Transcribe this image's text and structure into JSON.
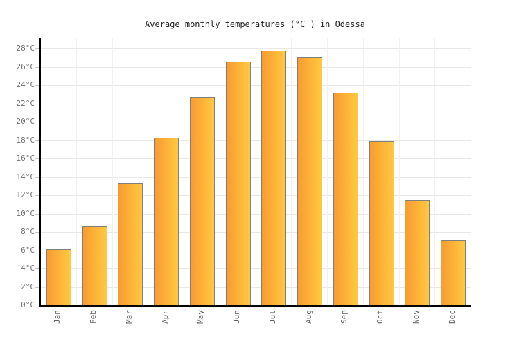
{
  "title": "Average monthly temperatures (°C ) in Odessa",
  "chart_data": {
    "type": "bar",
    "title": "Average monthly temperatures (°C ) in Odessa",
    "categories": [
      "Jan",
      "Feb",
      "Mar",
      "Apr",
      "May",
      "Jun",
      "Jul",
      "Aug",
      "Sep",
      "Oct",
      "Nov",
      "Dec"
    ],
    "values": [
      6.1,
      8.6,
      13.3,
      18.3,
      22.7,
      26.6,
      27.8,
      27.0,
      23.2,
      17.9,
      11.5,
      7.1
    ],
    "xlabel": "",
    "ylabel": "°C",
    "ylim": [
      0,
      28
    ],
    "ytick_step": 2,
    "ytick_suffix": "°C",
    "grid": true,
    "legend": "none",
    "colors": {
      "bar_gradient_left": "#F99B31",
      "bar_gradient_right": "#FFC940",
      "bar_border": "#7f7f7f",
      "axis": "#000000",
      "hgrid": "#e8e8e8",
      "vgrid": "#f0f0f0",
      "tick": "#c8c8c8",
      "y_label_text": "#707070",
      "x_label_text": "#606060",
      "title_text": "#222222"
    }
  }
}
